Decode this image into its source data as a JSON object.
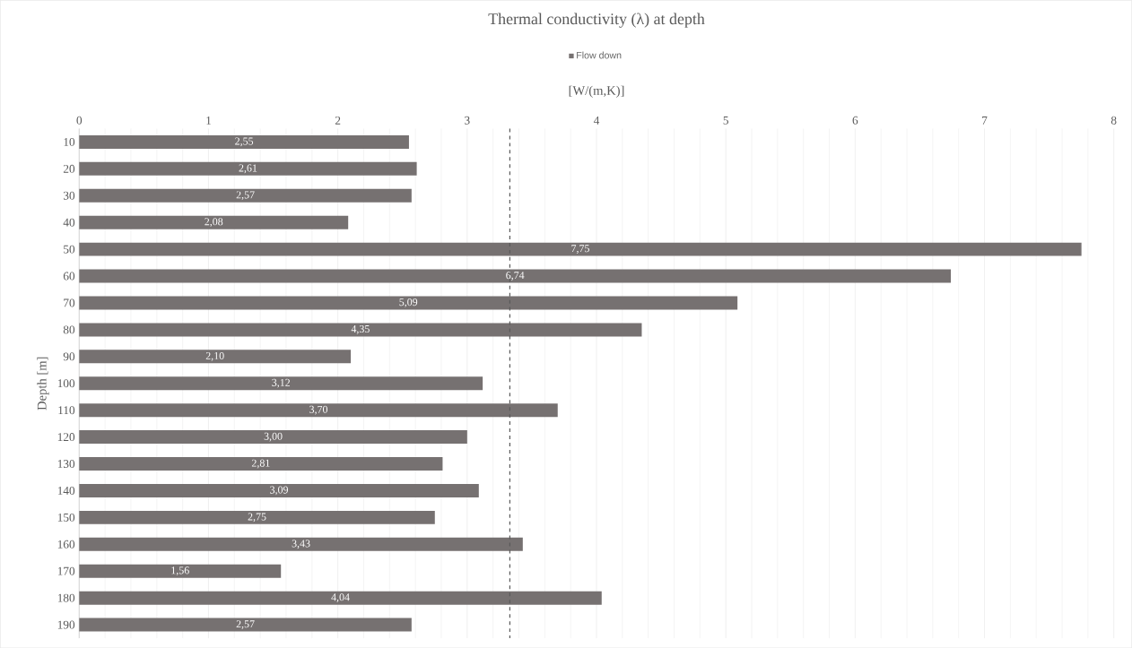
{
  "chart_data": {
    "type": "bar",
    "orientation": "horizontal",
    "title": "Thermal conductivity (λ) at depth",
    "xlabel": "[W/(m,K)]",
    "ylabel": "Depth [m]",
    "categories": [
      "10",
      "20",
      "30",
      "40",
      "50",
      "60",
      "70",
      "80",
      "90",
      "100",
      "110",
      "120",
      "130",
      "140",
      "150",
      "160",
      "170",
      "180",
      "190"
    ],
    "series": [
      {
        "name": "Flow down",
        "color": "#767171",
        "values": [
          2.55,
          2.61,
          2.57,
          2.08,
          7.75,
          6.74,
          5.09,
          4.35,
          2.1,
          3.12,
          3.7,
          3.0,
          2.81,
          3.09,
          2.75,
          3.43,
          1.56,
          4.04,
          2.57
        ],
        "value_labels": [
          "2,55",
          "2,61",
          "2,57",
          "2,08",
          "7,75",
          "6,74",
          "5,09",
          "4,35",
          "2,10",
          "3,12",
          "3,70",
          "3,00",
          "2,81",
          "3,09",
          "2,75",
          "3,43",
          "1,56",
          "4,04",
          "2,57"
        ]
      }
    ],
    "xlim": [
      0,
      8
    ],
    "xticks": [
      0,
      1,
      2,
      3,
      4,
      5,
      6,
      7,
      8
    ],
    "ref_lines": [
      {
        "axis": "x",
        "value": 3.33,
        "line_style": "dashed",
        "color": "#595959"
      }
    ],
    "grid": "x",
    "legend": "top"
  }
}
